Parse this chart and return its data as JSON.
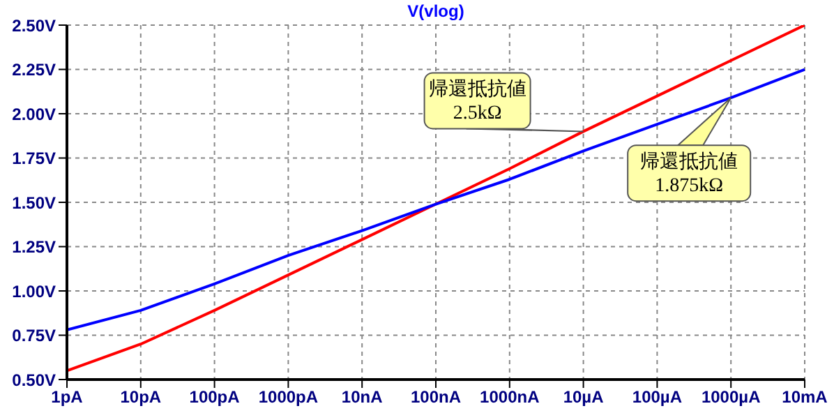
{
  "chart_data": {
    "type": "line",
    "title": "V(vlog)",
    "categories": [
      "1pA",
      "10pA",
      "100pA",
      "1000pA",
      "10nA",
      "100nA",
      "1000nA",
      "10µA",
      "100µA",
      "1000µA",
      "10mA"
    ],
    "series": [
      {
        "color": "#ff0000",
        "values": [
          0.55,
          0.7,
          0.89,
          1.09,
          1.29,
          1.49,
          1.69,
          1.9,
          2.1,
          2.3,
          2.5
        ]
      },
      {
        "color": "#0000ff",
        "values": [
          0.78,
          0.89,
          1.04,
          1.2,
          1.34,
          1.49,
          1.63,
          1.79,
          1.94,
          2.09,
          2.25
        ]
      }
    ],
    "ylim": [
      0.5,
      2.5
    ],
    "yticks": [
      {
        "value": 0.5,
        "label": "0.50V"
      },
      {
        "value": 0.75,
        "label": "0.75V"
      },
      {
        "value": 1.0,
        "label": "1.00V"
      },
      {
        "value": 1.25,
        "label": "1.25V"
      },
      {
        "value": 1.5,
        "label": "1.50V"
      },
      {
        "value": 1.75,
        "label": "1.75V"
      },
      {
        "value": 2.0,
        "label": "2.00V"
      },
      {
        "value": 2.25,
        "label": "2.25V"
      },
      {
        "value": 2.5,
        "label": "2.50V"
      }
    ],
    "grid": true,
    "marker": "none",
    "line_style": "solid",
    "annotations": [
      {
        "text": "帰還抵抗値\n2.5kΩ",
        "x": "10µA",
        "y": 1.9
      },
      {
        "text": "帰還抵抗値\n1.875kΩ",
        "x": "1000µA",
        "y": 2.09
      }
    ]
  }
}
